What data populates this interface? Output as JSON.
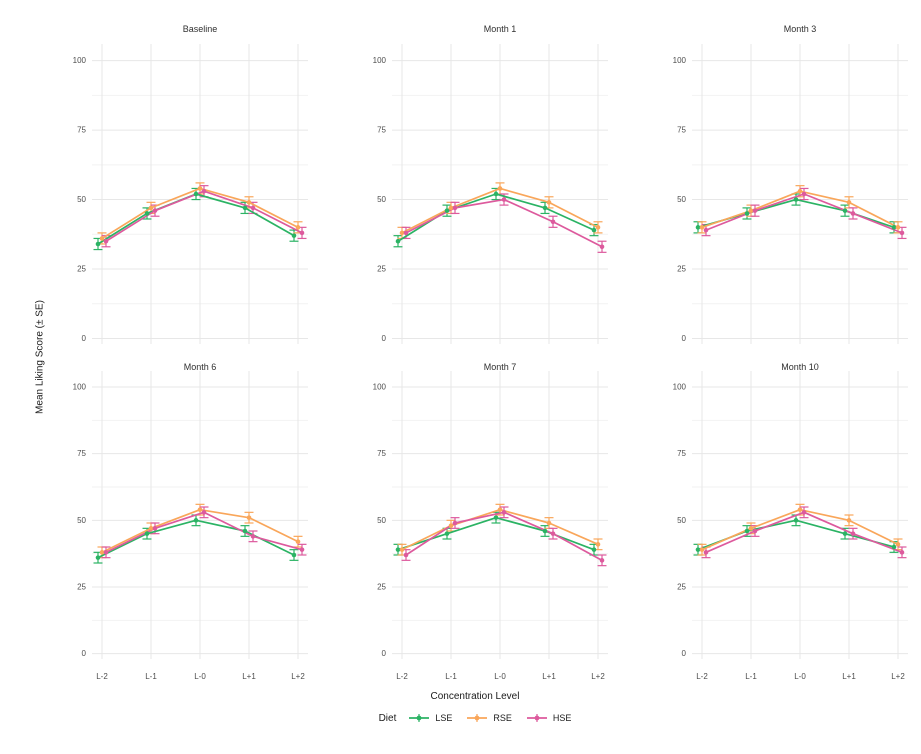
{
  "figure": {
    "y_axis_title": "Mean Liking Score (± SE)",
    "x_axis_title": "Concentration Level",
    "legend_title": "Diet"
  },
  "chart_data": {
    "type": "line",
    "facet_layout": "2 rows x 3 cols",
    "categories": [
      "L-2",
      "L-1",
      "L-0",
      "L+1",
      "L+2"
    ],
    "series_names": [
      "LSE",
      "RSE",
      "HSE"
    ],
    "series_colors": {
      "LSE": "#2bb364",
      "RSE": "#f9a65a",
      "HSE": "#dd5a9d"
    },
    "ylim": [
      0,
      100
    ],
    "yticks": [
      0,
      25,
      50,
      75,
      100
    ],
    "yticks_minor": [
      12.5,
      37.5,
      62.5,
      87.5
    ],
    "error_bar_se": 2,
    "grid": true,
    "legend_position": "bottom",
    "facets": [
      {
        "title": "Baseline",
        "series": [
          {
            "name": "LSE",
            "values": [
              34,
              45,
              52,
              47,
              37
            ]
          },
          {
            "name": "RSE",
            "values": [
              36,
              47,
              54,
              49,
              40
            ]
          },
          {
            "name": "HSE",
            "values": [
              35,
              46,
              53,
              47,
              38
            ]
          }
        ]
      },
      {
        "title": "Month 1",
        "series": [
          {
            "name": "LSE",
            "values": [
              35,
              46,
              52,
              47,
              39
            ]
          },
          {
            "name": "RSE",
            "values": [
              38,
              47,
              54,
              49,
              40
            ]
          },
          {
            "name": "HSE",
            "values": [
              38,
              47,
              50,
              42,
              33
            ]
          }
        ]
      },
      {
        "title": "Month 3",
        "series": [
          {
            "name": "LSE",
            "values": [
              40,
              45,
              50,
              46,
              40
            ]
          },
          {
            "name": "RSE",
            "values": [
              40,
              46,
              53,
              49,
              40
            ]
          },
          {
            "name": "HSE",
            "values": [
              39,
              46,
              52,
              45,
              38
            ]
          }
        ]
      },
      {
        "title": "Month 6",
        "series": [
          {
            "name": "LSE",
            "values": [
              36,
              45,
              50,
              46,
              37
            ]
          },
          {
            "name": "RSE",
            "values": [
              38,
              47,
              54,
              51,
              42
            ]
          },
          {
            "name": "HSE",
            "values": [
              38,
              47,
              53,
              44,
              39
            ]
          }
        ]
      },
      {
        "title": "Month 7",
        "series": [
          {
            "name": "LSE",
            "values": [
              39,
              45,
              51,
              46,
              39
            ]
          },
          {
            "name": "RSE",
            "values": [
              39,
              48,
              54,
              49,
              41
            ]
          },
          {
            "name": "HSE",
            "values": [
              37,
              49,
              53,
              45,
              35
            ]
          }
        ]
      },
      {
        "title": "Month 10",
        "series": [
          {
            "name": "LSE",
            "values": [
              39,
              46,
              50,
              45,
              40
            ]
          },
          {
            "name": "RSE",
            "values": [
              39,
              47,
              54,
              50,
              41
            ]
          },
          {
            "name": "HSE",
            "values": [
              38,
              46,
              53,
              45,
              38
            ]
          }
        ]
      }
    ]
  }
}
